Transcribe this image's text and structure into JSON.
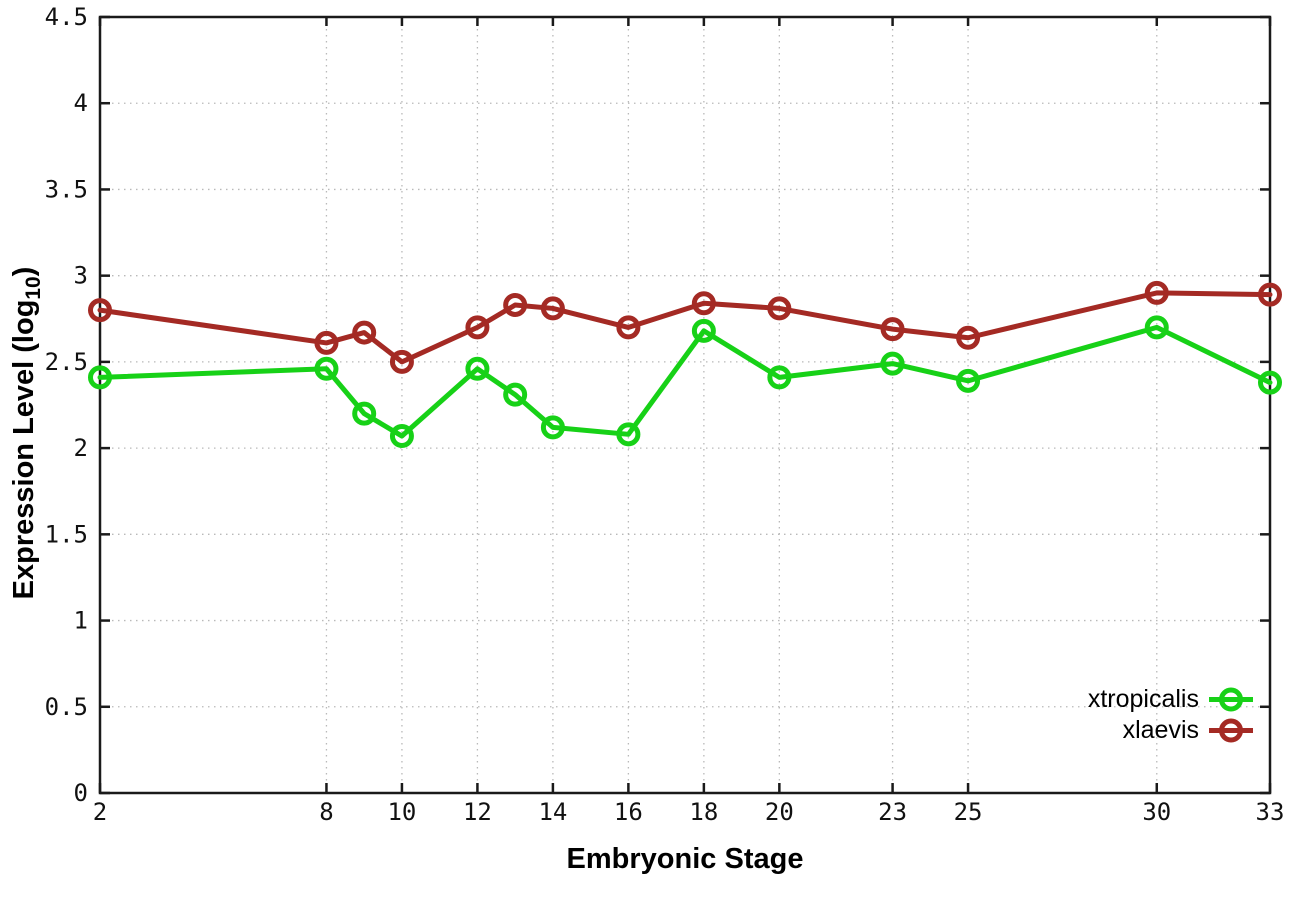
{
  "chart_data": {
    "type": "line",
    "title": "",
    "xlabel": "Embryonic Stage",
    "ylabel": "Expression Level (log10)",
    "ylabel_parts": {
      "base": "Expression Level (log",
      "sub": "10",
      "close": ")"
    },
    "x": [
      2,
      8,
      9,
      10,
      12,
      13,
      14,
      16,
      18,
      20,
      23,
      25,
      30,
      33
    ],
    "xticks": [
      2,
      8,
      10,
      12,
      14,
      16,
      18,
      20,
      23,
      25,
      30,
      33
    ],
    "yticks": [
      0,
      0.5,
      1,
      1.5,
      2,
      2.5,
      3,
      3.5,
      4,
      4.5
    ],
    "ytick_labels": [
      "0",
      "0.5",
      "1",
      "1.5",
      "2",
      "2.5",
      "3",
      "3.5",
      "4",
      "4.5"
    ],
    "xlim": [
      2,
      33
    ],
    "ylim": [
      0,
      4.5
    ],
    "grid": true,
    "legend_position": "bottom-right",
    "series": [
      {
        "name": "xtropicalis",
        "color": "#17d117",
        "values": [
          2.41,
          2.46,
          2.2,
          2.07,
          2.46,
          2.31,
          2.12,
          2.08,
          2.68,
          2.41,
          2.49,
          2.39,
          2.7,
          2.38
        ]
      },
      {
        "name": "xlaevis",
        "color": "#a42a24",
        "values": [
          2.8,
          2.61,
          2.67,
          2.5,
          2.7,
          2.83,
          2.81,
          2.7,
          2.84,
          2.81,
          2.69,
          2.64,
          2.9,
          2.89
        ]
      }
    ],
    "colors": {
      "background": "#ffffff",
      "grid": "#b9b9b9",
      "frame": "#1a1a1a",
      "text": "#000000"
    }
  }
}
